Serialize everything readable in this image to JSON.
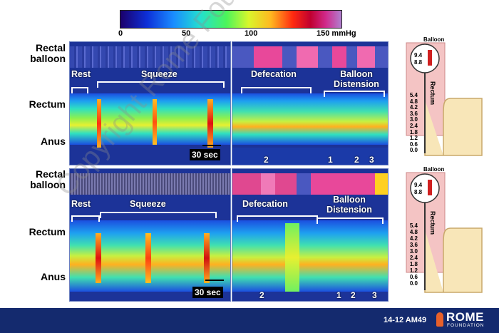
{
  "colorbar": {
    "ticks": [
      "0",
      "50",
      "100",
      "150 mmHg"
    ]
  },
  "row_labels": {
    "rectal_balloon": "Rectal balloon",
    "rectal_balloon_2": "Rectal balloon",
    "rectum": "Rectum",
    "rectum_2": "Rectum",
    "anus": "Anus",
    "anus_2": "Anus"
  },
  "top_panel": {
    "rest": "Rest",
    "squeeze": "Squeeze",
    "defecation": "Defecation",
    "balloon_distension": "Balloon Distension",
    "scale": "30 sec",
    "markers": [
      "2",
      "1",
      "2",
      "3"
    ]
  },
  "bottom_panel": {
    "rest": "Rest",
    "squeeze": "Squeeze",
    "defecation": "Defecation",
    "balloon_distension": "Balloon Distension",
    "scale": "30 sec",
    "markers": [
      "2",
      "1",
      "2",
      "3"
    ]
  },
  "probe_top": {
    "title": "Balloon",
    "bubble_values": [
      "9.4",
      "8.8"
    ],
    "rectum_label": "Rectum",
    "depth_ticks": [
      "5.4",
      "4.8",
      "4.2",
      "3.6",
      "3.0",
      "2.4",
      "1.8",
      "1.2",
      "0.6",
      "0.0"
    ]
  },
  "probe_bottom": {
    "title": "Balloon",
    "bubble_values": [
      "9.4",
      "8.8"
    ],
    "rectum_label": "Rectum",
    "depth_ticks": [
      "5.4",
      "4.8",
      "4.2",
      "3.6",
      "3.0",
      "2.4",
      "1.8",
      "1.2",
      "0.6",
      "0.0"
    ]
  },
  "footer": {
    "code": "14-12 AM49",
    "logo_text": "ROME",
    "logo_sub": "FOUNDATION"
  },
  "watermark": "Copyright Rome Foundation"
}
